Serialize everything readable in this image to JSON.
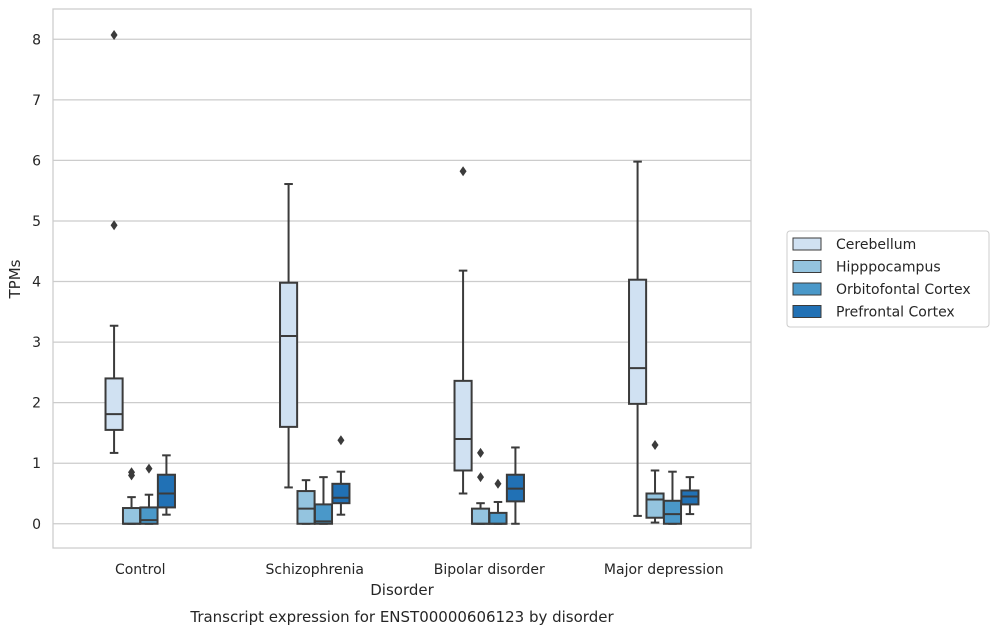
{
  "chart_data": {
    "type": "boxplot",
    "title": "Transcript expression for ENST00000606123 by disorder",
    "xlabel": "Disorder",
    "ylabel": "TPMs",
    "ylim": [
      -0.4,
      8.5
    ],
    "yticks": [
      0,
      1,
      2,
      3,
      4,
      5,
      6,
      7,
      8
    ],
    "grid": true,
    "legend_position": "right",
    "categories": [
      "Control",
      "Schizophrenia",
      "Bipolar disorder",
      "Major depression"
    ],
    "series": [
      {
        "name": "Cerebellum",
        "color": "#d0e1f2",
        "boxes": [
          {
            "whislo": 1.17,
            "q1": 1.55,
            "med": 1.81,
            "q3": 2.4,
            "whishi": 3.27,
            "fliers": [
              4.93,
              8.07
            ]
          },
          {
            "whislo": 0.6,
            "q1": 1.6,
            "med": 3.1,
            "q3": 3.98,
            "whishi": 5.61,
            "fliers": []
          },
          {
            "whislo": 0.5,
            "q1": 0.88,
            "med": 1.4,
            "q3": 2.36,
            "whishi": 4.18,
            "fliers": [
              5.82
            ]
          },
          {
            "whislo": 0.13,
            "q1": 1.98,
            "med": 2.57,
            "q3": 4.03,
            "whishi": 5.98,
            "fliers": []
          }
        ]
      },
      {
        "name": "Hipppocampus",
        "color": "#94c4df",
        "boxes": [
          {
            "whislo": 0.0,
            "q1": 0.0,
            "med": 0.0,
            "q3": 0.26,
            "whishi": 0.44,
            "fliers": [
              0.8,
              0.85
            ]
          },
          {
            "whislo": 0.0,
            "q1": 0.0,
            "med": 0.25,
            "q3": 0.54,
            "whishi": 0.72,
            "fliers": []
          },
          {
            "whislo": 0.0,
            "q1": 0.0,
            "med": 0.0,
            "q3": 0.25,
            "whishi": 0.34,
            "fliers": [
              0.77,
              1.17
            ]
          },
          {
            "whislo": 0.02,
            "q1": 0.1,
            "med": 0.4,
            "q3": 0.5,
            "whishi": 0.88,
            "fliers": [
              1.3
            ]
          }
        ]
      },
      {
        "name": "Orbitofontal Cortex",
        "color": "#4a98c9",
        "boxes": [
          {
            "whislo": 0.0,
            "q1": 0.0,
            "med": 0.06,
            "q3": 0.27,
            "whishi": 0.48,
            "fliers": [
              0.91
            ]
          },
          {
            "whislo": 0.0,
            "q1": 0.0,
            "med": 0.04,
            "q3": 0.32,
            "whishi": 0.77,
            "fliers": []
          },
          {
            "whislo": 0.0,
            "q1": 0.0,
            "med": 0.0,
            "q3": 0.18,
            "whishi": 0.36,
            "fliers": [
              0.66
            ]
          },
          {
            "whislo": 0.0,
            "q1": 0.0,
            "med": 0.16,
            "q3": 0.38,
            "whishi": 0.86,
            "fliers": []
          }
        ]
      },
      {
        "name": "Prefrontal Cortex",
        "color": "#2171b5",
        "boxes": [
          {
            "whislo": 0.15,
            "q1": 0.27,
            "med": 0.5,
            "q3": 0.81,
            "whishi": 1.13,
            "fliers": []
          },
          {
            "whislo": 0.15,
            "q1": 0.34,
            "med": 0.43,
            "q3": 0.66,
            "whishi": 0.86,
            "fliers": [
              1.38
            ]
          },
          {
            "whislo": 0.0,
            "q1": 0.37,
            "med": 0.58,
            "q3": 0.81,
            "whishi": 1.26,
            "fliers": []
          },
          {
            "whislo": 0.16,
            "q1": 0.32,
            "med": 0.45,
            "q3": 0.55,
            "whishi": 0.77,
            "fliers": []
          }
        ]
      }
    ]
  }
}
